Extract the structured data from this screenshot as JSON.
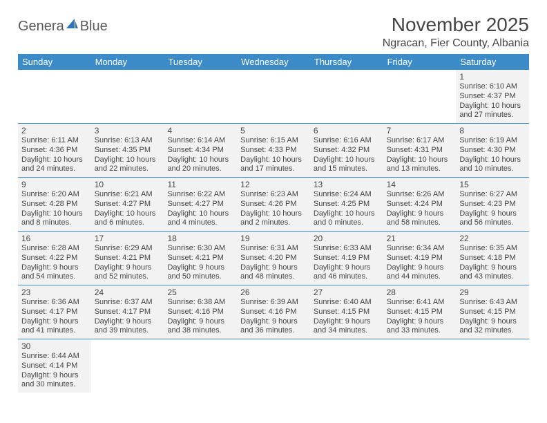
{
  "logo": {
    "part1": "Genera",
    "part2": "Blue"
  },
  "title": "November 2025",
  "location": "Ngracan, Fier County, Albania",
  "colors": {
    "header_bg": "#3b8bc9",
    "header_text": "#ffffff",
    "cell_bg": "#f2f2f2",
    "border": "#3b8bc9",
    "text": "#444444",
    "logo_sail": "#2f74b5"
  },
  "day_names": [
    "Sunday",
    "Monday",
    "Tuesday",
    "Wednesday",
    "Thursday",
    "Friday",
    "Saturday"
  ],
  "weeks": [
    [
      {
        "blank": true
      },
      {
        "blank": true
      },
      {
        "blank": true
      },
      {
        "blank": true
      },
      {
        "blank": true
      },
      {
        "blank": true
      },
      {
        "n": "1",
        "sr": "Sunrise: 6:10 AM",
        "ss": "Sunset: 4:37 PM",
        "d1": "Daylight: 10 hours",
        "d2": "and 27 minutes."
      }
    ],
    [
      {
        "n": "2",
        "sr": "Sunrise: 6:11 AM",
        "ss": "Sunset: 4:36 PM",
        "d1": "Daylight: 10 hours",
        "d2": "and 24 minutes."
      },
      {
        "n": "3",
        "sr": "Sunrise: 6:13 AM",
        "ss": "Sunset: 4:35 PM",
        "d1": "Daylight: 10 hours",
        "d2": "and 22 minutes."
      },
      {
        "n": "4",
        "sr": "Sunrise: 6:14 AM",
        "ss": "Sunset: 4:34 PM",
        "d1": "Daylight: 10 hours",
        "d2": "and 20 minutes."
      },
      {
        "n": "5",
        "sr": "Sunrise: 6:15 AM",
        "ss": "Sunset: 4:33 PM",
        "d1": "Daylight: 10 hours",
        "d2": "and 17 minutes."
      },
      {
        "n": "6",
        "sr": "Sunrise: 6:16 AM",
        "ss": "Sunset: 4:32 PM",
        "d1": "Daylight: 10 hours",
        "d2": "and 15 minutes."
      },
      {
        "n": "7",
        "sr": "Sunrise: 6:17 AM",
        "ss": "Sunset: 4:31 PM",
        "d1": "Daylight: 10 hours",
        "d2": "and 13 minutes."
      },
      {
        "n": "8",
        "sr": "Sunrise: 6:19 AM",
        "ss": "Sunset: 4:30 PM",
        "d1": "Daylight: 10 hours",
        "d2": "and 10 minutes."
      }
    ],
    [
      {
        "n": "9",
        "sr": "Sunrise: 6:20 AM",
        "ss": "Sunset: 4:28 PM",
        "d1": "Daylight: 10 hours",
        "d2": "and 8 minutes."
      },
      {
        "n": "10",
        "sr": "Sunrise: 6:21 AM",
        "ss": "Sunset: 4:27 PM",
        "d1": "Daylight: 10 hours",
        "d2": "and 6 minutes."
      },
      {
        "n": "11",
        "sr": "Sunrise: 6:22 AM",
        "ss": "Sunset: 4:27 PM",
        "d1": "Daylight: 10 hours",
        "d2": "and 4 minutes."
      },
      {
        "n": "12",
        "sr": "Sunrise: 6:23 AM",
        "ss": "Sunset: 4:26 PM",
        "d1": "Daylight: 10 hours",
        "d2": "and 2 minutes."
      },
      {
        "n": "13",
        "sr": "Sunrise: 6:24 AM",
        "ss": "Sunset: 4:25 PM",
        "d1": "Daylight: 10 hours",
        "d2": "and 0 minutes."
      },
      {
        "n": "14",
        "sr": "Sunrise: 6:26 AM",
        "ss": "Sunset: 4:24 PM",
        "d1": "Daylight: 9 hours",
        "d2": "and 58 minutes."
      },
      {
        "n": "15",
        "sr": "Sunrise: 6:27 AM",
        "ss": "Sunset: 4:23 PM",
        "d1": "Daylight: 9 hours",
        "d2": "and 56 minutes."
      }
    ],
    [
      {
        "n": "16",
        "sr": "Sunrise: 6:28 AM",
        "ss": "Sunset: 4:22 PM",
        "d1": "Daylight: 9 hours",
        "d2": "and 54 minutes."
      },
      {
        "n": "17",
        "sr": "Sunrise: 6:29 AM",
        "ss": "Sunset: 4:21 PM",
        "d1": "Daylight: 9 hours",
        "d2": "and 52 minutes."
      },
      {
        "n": "18",
        "sr": "Sunrise: 6:30 AM",
        "ss": "Sunset: 4:21 PM",
        "d1": "Daylight: 9 hours",
        "d2": "and 50 minutes."
      },
      {
        "n": "19",
        "sr": "Sunrise: 6:31 AM",
        "ss": "Sunset: 4:20 PM",
        "d1": "Daylight: 9 hours",
        "d2": "and 48 minutes."
      },
      {
        "n": "20",
        "sr": "Sunrise: 6:33 AM",
        "ss": "Sunset: 4:19 PM",
        "d1": "Daylight: 9 hours",
        "d2": "and 46 minutes."
      },
      {
        "n": "21",
        "sr": "Sunrise: 6:34 AM",
        "ss": "Sunset: 4:19 PM",
        "d1": "Daylight: 9 hours",
        "d2": "and 44 minutes."
      },
      {
        "n": "22",
        "sr": "Sunrise: 6:35 AM",
        "ss": "Sunset: 4:18 PM",
        "d1": "Daylight: 9 hours",
        "d2": "and 43 minutes."
      }
    ],
    [
      {
        "n": "23",
        "sr": "Sunrise: 6:36 AM",
        "ss": "Sunset: 4:17 PM",
        "d1": "Daylight: 9 hours",
        "d2": "and 41 minutes."
      },
      {
        "n": "24",
        "sr": "Sunrise: 6:37 AM",
        "ss": "Sunset: 4:17 PM",
        "d1": "Daylight: 9 hours",
        "d2": "and 39 minutes."
      },
      {
        "n": "25",
        "sr": "Sunrise: 6:38 AM",
        "ss": "Sunset: 4:16 PM",
        "d1": "Daylight: 9 hours",
        "d2": "and 38 minutes."
      },
      {
        "n": "26",
        "sr": "Sunrise: 6:39 AM",
        "ss": "Sunset: 4:16 PM",
        "d1": "Daylight: 9 hours",
        "d2": "and 36 minutes."
      },
      {
        "n": "27",
        "sr": "Sunrise: 6:40 AM",
        "ss": "Sunset: 4:15 PM",
        "d1": "Daylight: 9 hours",
        "d2": "and 34 minutes."
      },
      {
        "n": "28",
        "sr": "Sunrise: 6:41 AM",
        "ss": "Sunset: 4:15 PM",
        "d1": "Daylight: 9 hours",
        "d2": "and 33 minutes."
      },
      {
        "n": "29",
        "sr": "Sunrise: 6:43 AM",
        "ss": "Sunset: 4:15 PM",
        "d1": "Daylight: 9 hours",
        "d2": "and 32 minutes."
      }
    ],
    [
      {
        "n": "30",
        "sr": "Sunrise: 6:44 AM",
        "ss": "Sunset: 4:14 PM",
        "d1": "Daylight: 9 hours",
        "d2": "and 30 minutes."
      },
      {
        "blank": true
      },
      {
        "blank": true
      },
      {
        "blank": true
      },
      {
        "blank": true
      },
      {
        "blank": true
      },
      {
        "blank": true
      }
    ]
  ]
}
